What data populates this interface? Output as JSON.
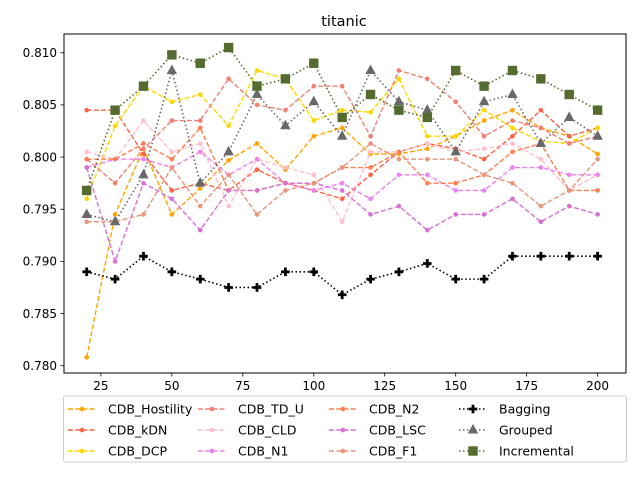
{
  "chart_data": {
    "type": "line",
    "title": "titanic",
    "xlabel": "",
    "ylabel": "",
    "xlim": [
      12,
      210
    ],
    "ylim": [
      0.7793,
      0.8118
    ],
    "xticks": [
      25,
      50,
      75,
      100,
      125,
      150,
      175,
      200
    ],
    "yticks": [
      0.78,
      0.785,
      0.79,
      0.795,
      0.8,
      0.805,
      0.81
    ],
    "ytick_labels": [
      "0.780",
      "0.785",
      "0.790",
      "0.795",
      "0.800",
      "0.805",
      "0.810"
    ],
    "grid": false,
    "legend_position": "below plot",
    "x": [
      20,
      30,
      40,
      50,
      60,
      70,
      80,
      90,
      100,
      110,
      120,
      130,
      140,
      150,
      160,
      170,
      180,
      190,
      200
    ],
    "series": [
      {
        "name": "CDB_Hostility",
        "color": "#ffa500",
        "linestyle": "dashed",
        "marker": "circle",
        "values": [
          0.7808,
          0.7945,
          0.8008,
          0.7945,
          0.797,
          0.7997,
          0.8013,
          0.7988,
          0.802,
          0.8028,
          0.8003,
          0.8003,
          0.8008,
          0.802,
          0.8035,
          0.8045,
          0.8028,
          0.802,
          0.8003
        ]
      },
      {
        "name": "CDB_kDN",
        "color": "#ff6347",
        "linestyle": "dashed",
        "marker": "circle",
        "values": [
          0.8045,
          0.8045,
          0.8003,
          0.7968,
          0.7975,
          0.7968,
          0.7988,
          0.7975,
          0.7968,
          0.796,
          0.7983,
          0.8005,
          0.8013,
          0.8008,
          0.7998,
          0.802,
          0.8045,
          0.802,
          0.8028
        ]
      },
      {
        "name": "CDB_DCP",
        "color": "#ffd700",
        "linestyle": "dashed",
        "marker": "circle",
        "values": [
          0.796,
          0.803,
          0.8068,
          0.8053,
          0.806,
          0.803,
          0.8083,
          0.8075,
          0.8035,
          0.8045,
          0.8043,
          0.8075,
          0.802,
          0.802,
          0.8045,
          0.8028,
          0.8015,
          0.8013,
          0.8028
        ]
      },
      {
        "name": "CDB_TD_U",
        "color": "#f08070",
        "linestyle": "dashed",
        "marker": "circle",
        "values": [
          0.7998,
          0.7975,
          0.8008,
          0.8035,
          0.8035,
          0.8075,
          0.805,
          0.8045,
          0.8068,
          0.8068,
          0.802,
          0.8083,
          0.8075,
          0.8053,
          0.802,
          0.8035,
          0.8028,
          0.8013,
          0.802
        ]
      },
      {
        "name": "CDB_CLD",
        "color": "#ffc0cb",
        "linestyle": "dashed",
        "marker": "circle",
        "values": [
          0.8005,
          0.7998,
          0.8035,
          0.8005,
          0.8013,
          0.7953,
          0.7998,
          0.799,
          0.7983,
          0.7938,
          0.8005,
          0.8005,
          0.8013,
          0.8005,
          0.8008,
          0.8013,
          0.7998,
          0.7968,
          0.7983
        ]
      },
      {
        "name": "CDB_N1",
        "color": "#ee82ee",
        "linestyle": "dashed",
        "marker": "circle",
        "values": [
          0.799,
          0.7998,
          0.7998,
          0.799,
          0.8005,
          0.7983,
          0.7998,
          0.7975,
          0.7968,
          0.7975,
          0.796,
          0.7983,
          0.7983,
          0.7968,
          0.7968,
          0.799,
          0.799,
          0.7983,
          0.7983
        ]
      },
      {
        "name": "CDB_N2",
        "color": "#ff7f50",
        "linestyle": "dashed",
        "marker": "circle",
        "values": [
          0.7998,
          0.7998,
          0.8013,
          0.7998,
          0.8028,
          0.7968,
          0.7968,
          0.7975,
          0.7975,
          0.799,
          0.799,
          0.8005,
          0.7975,
          0.7975,
          0.7983,
          0.8005,
          0.8013,
          0.7968,
          0.7968
        ]
      },
      {
        "name": "CDB_LSC",
        "color": "#da70d6",
        "linestyle": "dashed",
        "marker": "circle",
        "values": [
          0.799,
          0.79,
          0.7975,
          0.796,
          0.793,
          0.7968,
          0.7968,
          0.7975,
          0.7975,
          0.7968,
          0.7945,
          0.7953,
          0.793,
          0.7945,
          0.7945,
          0.796,
          0.7938,
          0.7953,
          0.7945
        ]
      },
      {
        "name": "CDB_F1",
        "color": "#e9967a",
        "linestyle": "dashed",
        "marker": "circle",
        "values": [
          0.7938,
          0.7938,
          0.7945,
          0.799,
          0.7953,
          0.7983,
          0.7945,
          0.7968,
          0.7975,
          0.799,
          0.8013,
          0.7998,
          0.7998,
          0.7998,
          0.7983,
          0.7975,
          0.7953,
          0.7968,
          0.7998
        ]
      },
      {
        "name": "Bagging",
        "color": "#000000",
        "linestyle": "dotted",
        "marker": "plus",
        "values": [
          0.789,
          0.7883,
          0.7905,
          0.789,
          0.7883,
          0.7875,
          0.7875,
          0.789,
          0.789,
          0.7868,
          0.7883,
          0.789,
          0.7898,
          0.7883,
          0.7883,
          0.7905,
          0.7905,
          0.7905,
          0.7905
        ]
      },
      {
        "name": "Grouped",
        "color": "#696969",
        "linestyle": "dotted",
        "marker": "triangle",
        "values": [
          0.7945,
          0.7938,
          0.7983,
          0.8083,
          0.7975,
          0.8005,
          0.806,
          0.803,
          0.8053,
          0.802,
          0.8083,
          0.8053,
          0.8045,
          0.8005,
          0.8053,
          0.806,
          0.8013,
          0.8038,
          0.802
        ]
      },
      {
        "name": "Incremental",
        "color": "#556b2f",
        "linestyle": "dotted",
        "marker": "square",
        "values": [
          0.7968,
          0.8045,
          0.8068,
          0.8098,
          0.809,
          0.8105,
          0.8068,
          0.8075,
          0.809,
          0.8038,
          0.806,
          0.8045,
          0.8038,
          0.8083,
          0.8068,
          0.8083,
          0.8075,
          0.806,
          0.8045
        ]
      }
    ]
  }
}
